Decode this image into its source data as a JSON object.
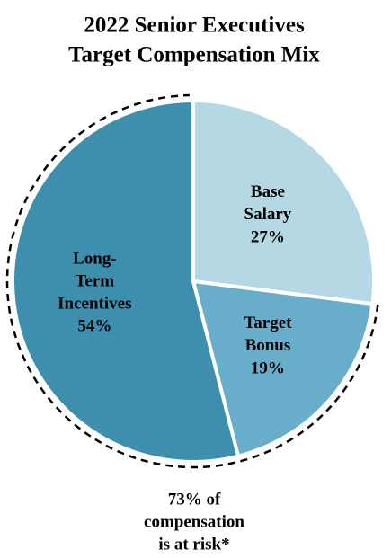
{
  "chart_data": {
    "type": "pie",
    "title": [
      "2022 Senior Executives",
      "Target Compensation Mix"
    ],
    "categories": [
      "Base Salary",
      "Target Bonus",
      "Long-Term Incentives"
    ],
    "values": [
      27,
      19,
      54
    ],
    "value_labels": [
      "27%",
      "19%",
      "54%"
    ],
    "colors": [
      "#b4d9e4",
      "#68aecb",
      "#3e8fad"
    ],
    "annotation": [
      "73% of",
      "compensation",
      "is at risk*"
    ]
  }
}
